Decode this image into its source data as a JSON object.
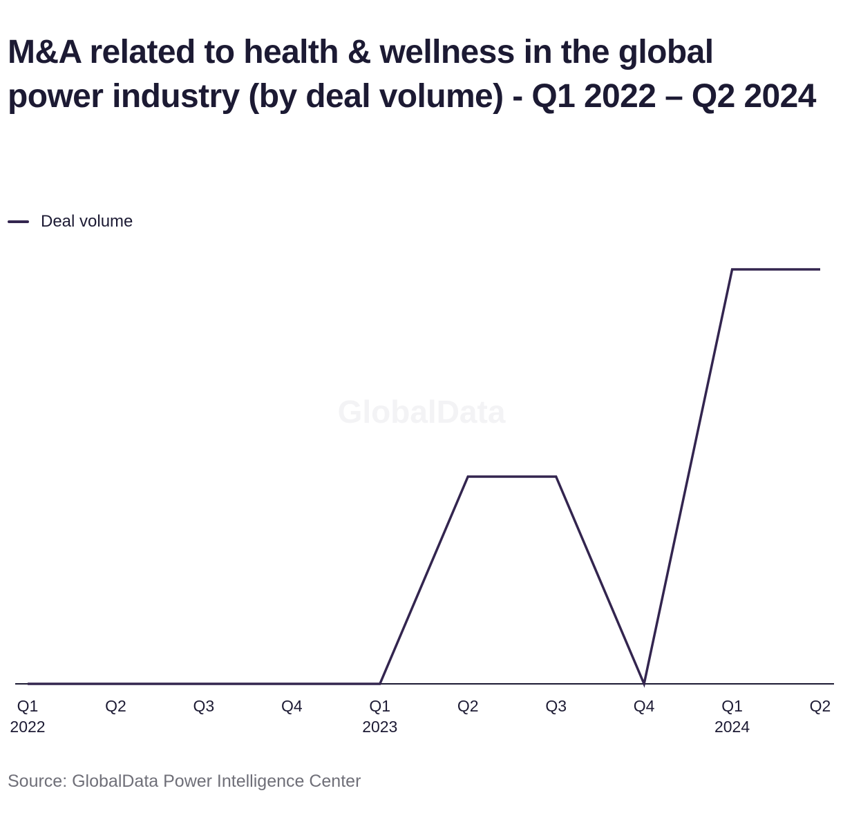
{
  "title": "M&A related to health & wellness in the global power industry (by deal volume) - Q1 2022 – Q2 2024",
  "watermark": "GlobalData",
  "source": "Source: GlobalData Power Intelligence Center",
  "colors": {
    "series": "#33254f",
    "axis": "#1c1a33",
    "text": "#1c1a33",
    "source_text": "#6f6f78",
    "watermark": "#f3f3f5"
  },
  "chart_data": {
    "type": "line",
    "title": "M&A related to health & wellness in the global power industry (by deal volume) - Q1 2022 – Q2 2024",
    "categories": [
      [
        "Q1",
        "2022"
      ],
      [
        "Q2",
        ""
      ],
      [
        "Q3",
        ""
      ],
      [
        "Q4",
        ""
      ],
      [
        "Q1",
        "2023"
      ],
      [
        "Q2",
        ""
      ],
      [
        "Q3",
        ""
      ],
      [
        "Q4",
        ""
      ],
      [
        "Q1",
        "2024"
      ],
      [
        "Q2",
        ""
      ]
    ],
    "series": [
      {
        "name": "Deal volume",
        "values": [
          0,
          0,
          0,
          0,
          0,
          1,
          1,
          0,
          2,
          2
        ]
      }
    ],
    "ylim": [
      0,
      2
    ],
    "y_axis_shown": false,
    "grid": false,
    "legend_position": "top-left"
  }
}
